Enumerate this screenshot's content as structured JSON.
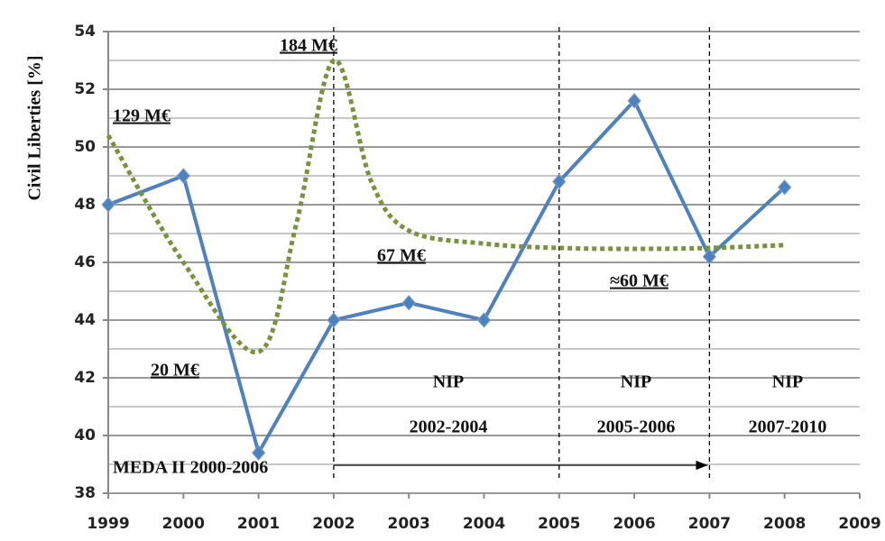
{
  "chart_data": {
    "type": "line",
    "ylabel": "Civil Liberties [%]",
    "xlim": [
      1999,
      2009
    ],
    "xticks": [
      1999,
      2000,
      2001,
      2002,
      2003,
      2004,
      2005,
      2006,
      2007,
      2008,
      2009
    ],
    "ylim": [
      38,
      54
    ],
    "yticks": [
      38,
      40,
      42,
      44,
      46,
      48,
      50,
      52,
      54
    ],
    "yminor": [
      39,
      41,
      43,
      45,
      47,
      49,
      51,
      53
    ],
    "grid": true,
    "series": [
      {
        "color": "#4f81bd",
        "x": [
          1999,
          2000,
          2001,
          2002,
          2003,
          2004,
          2005,
          2006,
          2007,
          2008
        ],
        "values": [
          48,
          49,
          39.4,
          44,
          44.6,
          44,
          48.8,
          51.6,
          46.2,
          48.6
        ]
      },
      {
        "color": "#77933c",
        "dotted": true,
        "x": [
          1999,
          2000,
          2001,
          2001.5,
          2002,
          2002.5,
          2003,
          2004,
          2005,
          2006,
          2007,
          2008
        ],
        "values": [
          50.4,
          46.0,
          42.9,
          47.3,
          53.0,
          48.8,
          47.1,
          46.65,
          46.5,
          46.47,
          46.5,
          46.6
        ]
      }
    ],
    "dividers": [
      2002,
      2005,
      2007
    ],
    "arrow": [
      2002,
      2007
    ],
    "annotations": [
      "129 M€",
      "184  M€",
      "20 M€",
      "67 M€",
      "≈60 M€",
      "NIP",
      "2002-2004",
      "NIP",
      "2005-2006",
      "NIP",
      "2007-2010",
      "MEDA II 2000-2006"
    ]
  }
}
